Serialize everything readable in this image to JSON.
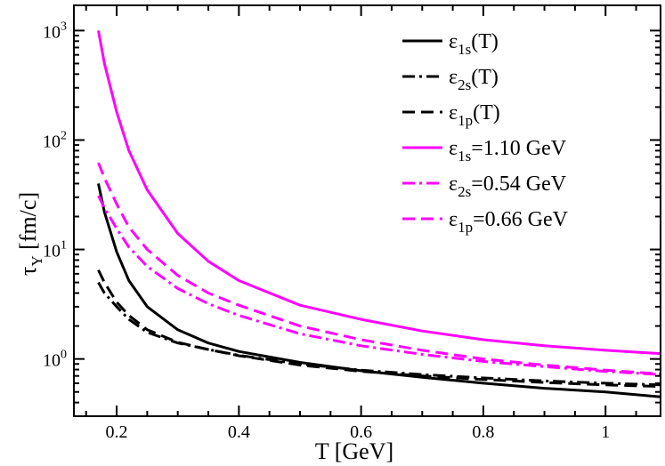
{
  "chart_data": {
    "type": "line",
    "xlabel": "T [GeV]",
    "ylabel": "τ",
    "ylabel_sub": "Υ",
    "ylabel_unit": " [fm/c]",
    "xlim": [
      0.13,
      1.09
    ],
    "ylim": [
      0.3,
      1700
    ],
    "yscale": "log",
    "x_ticks": [
      {
        "value": 0.2,
        "label": "0.2"
      },
      {
        "value": 0.4,
        "label": "0.4"
      },
      {
        "value": 0.6,
        "label": "0.6"
      },
      {
        "value": 0.8,
        "label": "0.8"
      },
      {
        "value": 1.0,
        "label": "1"
      }
    ],
    "y_ticks": [
      {
        "value": 1,
        "base": "10",
        "exp": "0"
      },
      {
        "value": 10,
        "base": "10",
        "exp": "1"
      },
      {
        "value": 100,
        "base": "10",
        "exp": "2"
      },
      {
        "value": 1000,
        "base": "10",
        "exp": "3"
      }
    ],
    "legend_position": "top-right",
    "series": [
      {
        "name_main": "ε",
        "name_sub": "1s",
        "name_rest": "(T)",
        "color": "#000000",
        "dash": "solid",
        "x": [
          0.17,
          0.18,
          0.2,
          0.22,
          0.25,
          0.3,
          0.35,
          0.4,
          0.5,
          0.6,
          0.7,
          0.8,
          0.9,
          1.0,
          1.09
        ],
        "y": [
          40,
          22,
          9.5,
          5.2,
          3.0,
          1.85,
          1.4,
          1.17,
          0.93,
          0.78,
          0.68,
          0.6,
          0.54,
          0.5,
          0.45
        ]
      },
      {
        "name_main": "ε",
        "name_sub": "2s",
        "name_rest": "(T)",
        "color": "#000000",
        "dash": "dashdot",
        "x": [
          0.17,
          0.18,
          0.2,
          0.22,
          0.25,
          0.3,
          0.35,
          0.4,
          0.5,
          0.6,
          0.7,
          0.8,
          0.9,
          1.0,
          1.09
        ],
        "y": [
          5.0,
          4.0,
          3.0,
          2.3,
          1.75,
          1.4,
          1.22,
          1.08,
          0.9,
          0.79,
          0.72,
          0.67,
          0.63,
          0.6,
          0.58
        ]
      },
      {
        "name_main": "ε",
        "name_sub": "1p",
        "name_rest": "(T)",
        "color": "#000000",
        "dash": "dashed",
        "x": [
          0.17,
          0.18,
          0.2,
          0.22,
          0.25,
          0.3,
          0.35,
          0.4,
          0.5,
          0.6,
          0.7,
          0.8,
          0.9,
          1.0,
          1.09
        ],
        "y": [
          6.5,
          5.0,
          3.3,
          2.5,
          1.85,
          1.42,
          1.22,
          1.07,
          0.88,
          0.77,
          0.7,
          0.65,
          0.61,
          0.58,
          0.56
        ]
      },
      {
        "name_main": "ε",
        "name_sub": "1s",
        "name_rest": "=1.10 GeV",
        "color": "#ff00ff",
        "dash": "solid",
        "x": [
          0.17,
          0.18,
          0.2,
          0.22,
          0.25,
          0.3,
          0.35,
          0.4,
          0.5,
          0.6,
          0.7,
          0.8,
          0.9,
          1.0,
          1.09
        ],
        "y": [
          1000,
          500,
          180,
          80,
          35,
          14,
          7.8,
          5.2,
          3.1,
          2.3,
          1.8,
          1.5,
          1.32,
          1.2,
          1.12
        ]
      },
      {
        "name_main": "ε",
        "name_sub": "2s",
        "name_rest": "=0.54 GeV",
        "color": "#ff00ff",
        "dash": "dashdot",
        "x": [
          0.17,
          0.18,
          0.2,
          0.22,
          0.25,
          0.3,
          0.35,
          0.4,
          0.5,
          0.6,
          0.7,
          0.8,
          0.9,
          1.0,
          1.09
        ],
        "y": [
          31,
          24,
          15.5,
          10.5,
          7.0,
          4.4,
          3.2,
          2.5,
          1.7,
          1.32,
          1.1,
          0.95,
          0.85,
          0.77,
          0.72
        ]
      },
      {
        "name_main": "ε",
        "name_sub": "1p",
        "name_rest": "=0.66 GeV",
        "color": "#ff00ff",
        "dash": "dashed",
        "x": [
          0.17,
          0.18,
          0.2,
          0.22,
          0.25,
          0.3,
          0.35,
          0.4,
          0.5,
          0.6,
          0.7,
          0.8,
          0.9,
          1.0,
          1.09
        ],
        "y": [
          62,
          45,
          26,
          16,
          10,
          5.8,
          4.0,
          3.1,
          2.0,
          1.5,
          1.2,
          1.0,
          0.88,
          0.79,
          0.73
        ]
      }
    ]
  }
}
